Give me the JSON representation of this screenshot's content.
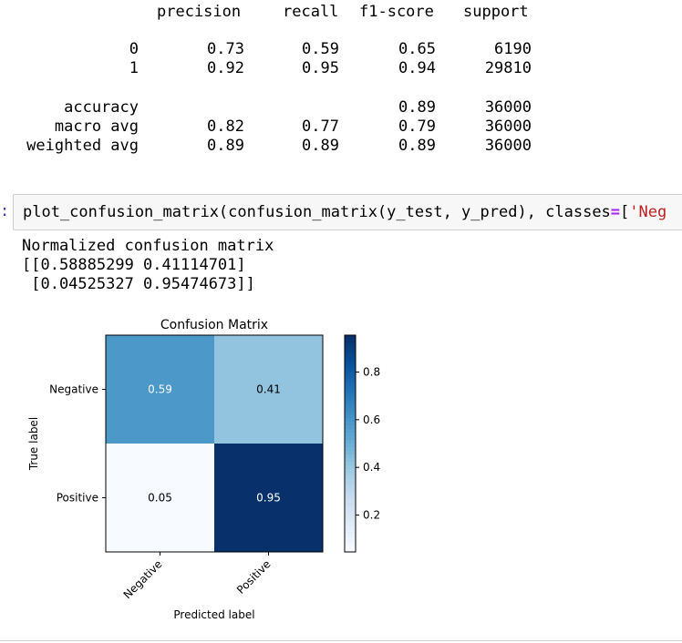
{
  "report": {
    "headers": [
      "precision",
      "recall",
      "f1-score",
      "support"
    ],
    "rows": [
      {
        "label": "0",
        "precision": "0.73",
        "recall": "0.59",
        "f1": "0.65",
        "support": "6190"
      },
      {
        "label": "1",
        "precision": "0.92",
        "recall": "0.95",
        "f1": "0.94",
        "support": "29810"
      },
      {
        "label": "accuracy",
        "precision": "",
        "recall": "",
        "f1": "0.89",
        "support": "36000"
      },
      {
        "label": "macro avg",
        "precision": "0.82",
        "recall": "0.77",
        "f1": "0.79",
        "support": "36000"
      },
      {
        "label": "weighted avg",
        "precision": "0.89",
        "recall": "0.89",
        "f1": "0.89",
        "support": "36000"
      }
    ]
  },
  "cell": {
    "prompt": ":",
    "code_before": "plot_confusion_matrix(confusion_matrix(y_test, y_pred), classes",
    "code_eq": "=",
    "code_bracket": "[",
    "code_string": "'Neg"
  },
  "output": {
    "line1": "Normalized confusion matrix",
    "line2": "[[0.58885299 0.41114701]",
    "line3": " [0.04525327 0.95474673]]"
  },
  "chart_data": {
    "type": "heatmap",
    "title": "Confusion Matrix",
    "xlabel": "Predicted label",
    "ylabel": "True label",
    "x_categories": [
      "Negative",
      "Positive"
    ],
    "y_categories": [
      "Negative",
      "Positive"
    ],
    "values": [
      [
        0.58885299,
        0.41114701
      ],
      [
        0.04525327,
        0.95474673
      ]
    ],
    "annotations": [
      [
        "0.59",
        "0.41"
      ],
      [
        "0.05",
        "0.95"
      ]
    ],
    "colormap": "Blues",
    "colors": {
      "low": "#f7fbff",
      "high": "#08306b"
    },
    "colorbar": {
      "range": [
        0.04525327,
        0.95474673
      ],
      "ticks": [
        0.2,
        0.4,
        0.6,
        0.8
      ],
      "tick_labels": [
        "0.2",
        "0.4",
        "0.6",
        "0.8"
      ]
    }
  }
}
